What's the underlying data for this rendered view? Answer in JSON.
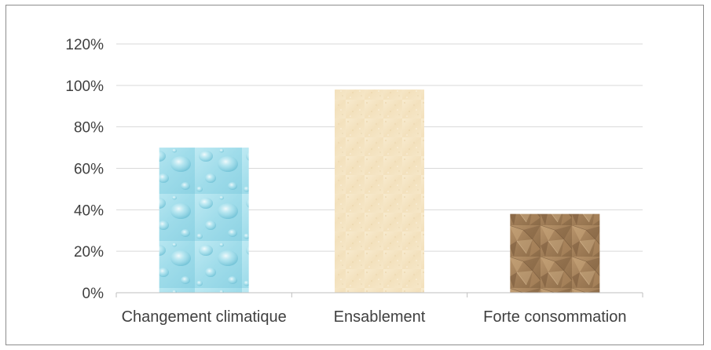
{
  "chart_data": {
    "type": "bar",
    "title": "",
    "xlabel": "",
    "ylabel": "",
    "categories": [
      "Changement climatique",
      "Ensablement",
      "Forte consommation"
    ],
    "values": [
      70,
      98,
      38
    ],
    "value_format": "percent",
    "ylim": [
      0,
      120
    ],
    "yticks": [
      0,
      20,
      40,
      60,
      80,
      100,
      120
    ],
    "ytick_labels": [
      "0%",
      "20%",
      "40%",
      "60%",
      "80%",
      "100%",
      "120%"
    ],
    "grid": true,
    "legend": "none",
    "bar_fills": [
      "water-droplets-texture",
      "sand-texture",
      "crumpled-brown-paper-texture"
    ],
    "colors": {
      "grid": "#d9d9d9",
      "axis": "#bfbfbf",
      "text": "#404040",
      "bar_1": "#9fdcea",
      "bar_2": "#f6e6c6",
      "bar_3": "#a07d57"
    }
  }
}
